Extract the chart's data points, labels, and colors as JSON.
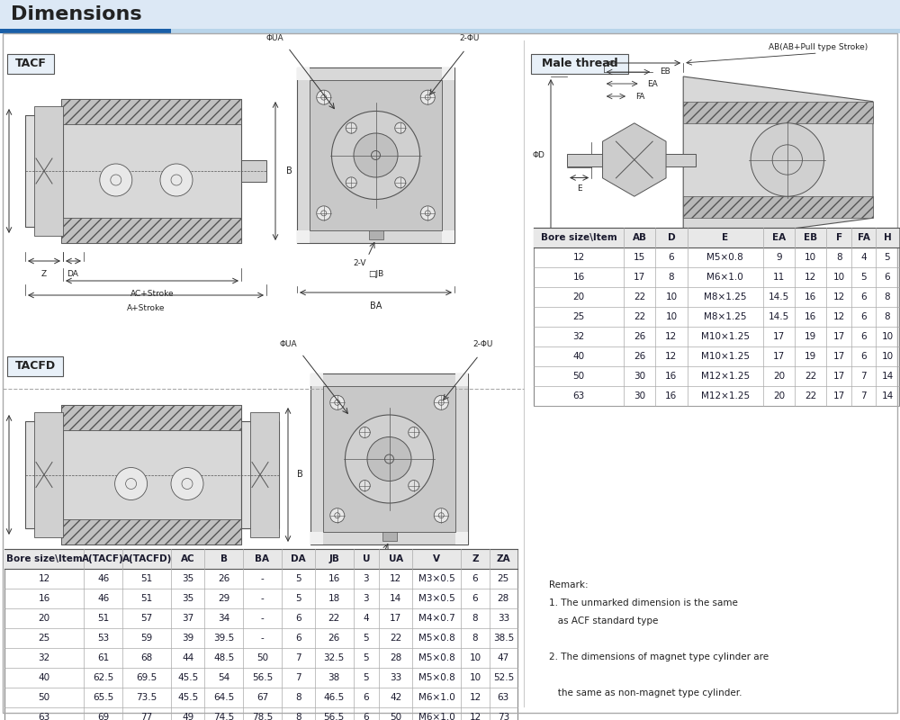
{
  "title": "Dimensions",
  "title_color": "#222222",
  "blue_bar_color": "#1a5fa8",
  "light_blue_bg": "#dce8f5",
  "lighter_blue_bg": "#eaf2fb",
  "white_bg": "#ffffff",
  "section1_label": "TACF",
  "section2_label": "TACFD",
  "right_section_label": "Male thread",
  "table1_headers": [
    "Bore size\\Item",
    "A(TACF)",
    "A(TACFD)",
    "AC",
    "B",
    "BA",
    "DA",
    "JB",
    "U",
    "UA",
    "V",
    "Z",
    "ZA"
  ],
  "table1_data": [
    [
      "12",
      "46",
      "51",
      "35",
      "26",
      "-",
      "5",
      "16",
      "3",
      "12",
      "M3×0.5",
      "6",
      "25"
    ],
    [
      "16",
      "46",
      "51",
      "35",
      "29",
      "-",
      "5",
      "18",
      "3",
      "14",
      "M3×0.5",
      "6",
      "28"
    ],
    [
      "20",
      "51",
      "57",
      "37",
      "34",
      "-",
      "6",
      "22",
      "4",
      "17",
      "M4×0.7",
      "8",
      "33"
    ],
    [
      "25",
      "53",
      "59",
      "39",
      "39.5",
      "-",
      "6",
      "26",
      "5",
      "22",
      "M5×0.8",
      "8",
      "38.5"
    ],
    [
      "32",
      "61",
      "68",
      "44",
      "48.5",
      "50",
      "7",
      "32.5",
      "5",
      "28",
      "M5×0.8",
      "10",
      "47"
    ],
    [
      "40",
      "62.5",
      "69.5",
      "45.5",
      "54",
      "56.5",
      "7",
      "38",
      "5",
      "33",
      "M5×0.8",
      "10",
      "52.5"
    ],
    [
      "50",
      "65.5",
      "73.5",
      "45.5",
      "64.5",
      "67",
      "8",
      "46.5",
      "6",
      "42",
      "M6×1.0",
      "12",
      "63"
    ],
    [
      "63",
      "69",
      "77",
      "49",
      "74.5",
      "78.5",
      "8",
      "56.5",
      "6",
      "50",
      "M6×1.0",
      "12",
      "73"
    ]
  ],
  "table2_headers": [
    "Bore size\\Item",
    "AB",
    "D",
    "E",
    "EA",
    "EB",
    "F",
    "FA",
    "H"
  ],
  "table2_data": [
    [
      "12",
      "15",
      "6",
      "M5×0.8",
      "9",
      "10",
      "8",
      "4",
      "5"
    ],
    [
      "16",
      "17",
      "8",
      "M6×1.0",
      "11",
      "12",
      "10",
      "5",
      "6"
    ],
    [
      "20",
      "22",
      "10",
      "M8×1.25",
      "14.5",
      "16",
      "12",
      "6",
      "8"
    ],
    [
      "25",
      "22",
      "10",
      "M8×1.25",
      "14.5",
      "16",
      "12",
      "6",
      "8"
    ],
    [
      "32",
      "26",
      "12",
      "M10×1.25",
      "17",
      "19",
      "17",
      "6",
      "10"
    ],
    [
      "40",
      "26",
      "12",
      "M10×1.25",
      "17",
      "19",
      "17",
      "6",
      "10"
    ],
    [
      "50",
      "30",
      "16",
      "M12×1.25",
      "20",
      "22",
      "17",
      "7",
      "14"
    ],
    [
      "63",
      "30",
      "16",
      "M12×1.25",
      "20",
      "22",
      "17",
      "7",
      "14"
    ]
  ],
  "remark_lines": [
    [
      "Remark:",
      false
    ],
    [
      "1. The unmarked dimension is the same",
      false
    ],
    [
      "   as ACF standard type",
      false
    ],
    [
      "",
      false
    ],
    [
      "2. The dimensions of magnet type cylinder are",
      false
    ],
    [
      "",
      false
    ],
    [
      "   the same as non-magnet type cylinder.",
      false
    ]
  ]
}
